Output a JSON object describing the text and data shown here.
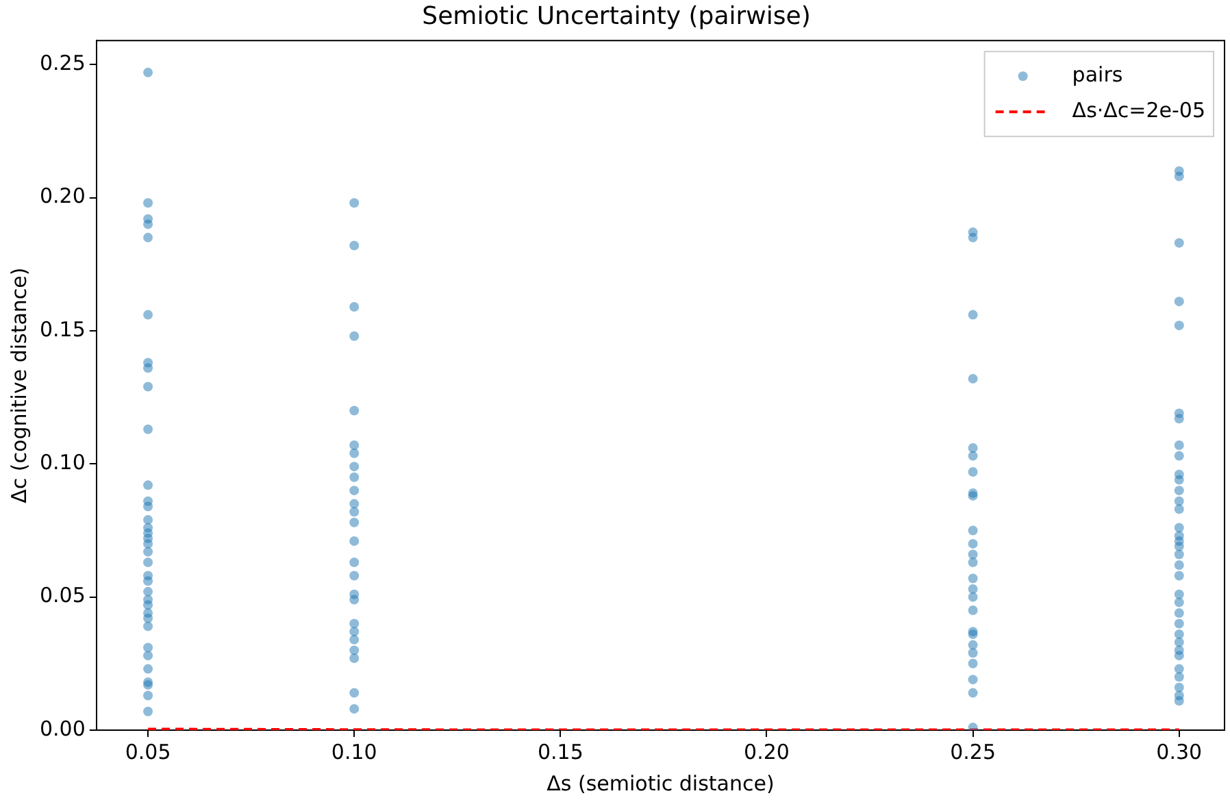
{
  "chart_data": {
    "type": "scatter",
    "title": "Semiotic Uncertainty (pairwise)",
    "xlabel": "Δs (semiotic distance)",
    "ylabel": "Δc (cognitive distance)",
    "xlim": [
      0.0375,
      0.311
    ],
    "xticks": [
      {
        "value": 0.05,
        "label": "0.05"
      },
      {
        "value": 0.1,
        "label": "0.10"
      },
      {
        "value": 0.15,
        "label": "0.15"
      },
      {
        "value": 0.2,
        "label": "0.20"
      },
      {
        "value": 0.25,
        "label": "0.25"
      },
      {
        "value": 0.3,
        "label": "0.30"
      }
    ],
    "ylim": [
      0,
      0.259
    ],
    "yticks": [
      {
        "value": 0,
        "label": "0.00"
      },
      0.05,
      {
        "value": 0.1,
        "label": "0.10"
      },
      0.15,
      {
        "value": 0.2,
        "label": "0.20"
      },
      0.25
    ],
    "grid": false,
    "legend": "top right",
    "marker": "circle",
    "series": [
      {
        "name": "pairs",
        "color": "#1f77b4",
        "x": [
          0.05,
          0.05,
          0.05,
          0.05,
          0.05,
          0.05,
          0.05,
          0.05,
          0.05,
          0.05,
          0.05,
          0.05,
          0.05,
          0.05,
          0.05,
          0.05,
          0.05,
          0.05,
          0.05,
          0.05,
          0.05,
          0.05,
          0.05,
          0.05,
          0.05,
          0.05,
          0.05,
          0.05,
          0.05,
          0.05,
          0.05,
          0.05,
          0.05,
          0.05,
          0.05,
          0.1,
          0.1,
          0.1,
          0.1,
          0.1,
          0.1,
          0.1,
          0.1,
          0.1,
          0.1,
          0.1,
          0.1,
          0.1,
          0.1,
          0.1,
          0.1,
          0.1,
          0.1,
          0.1,
          0.1,
          0.1,
          0.1,
          0.1,
          0.1,
          0.1,
          0.25,
          0.25,
          0.25,
          0.25,
          0.25,
          0.25,
          0.25,
          0.25,
          0.25,
          0.25,
          0.25,
          0.25,
          0.25,
          0.25,
          0.25,
          0.25,
          0.25,
          0.25,
          0.25,
          0.25,
          0.25,
          0.25,
          0.25,
          0.25,
          0.25,
          0.3,
          0.3,
          0.3,
          0.3,
          0.3,
          0.3,
          0.3,
          0.3,
          0.3,
          0.3,
          0.3,
          0.3,
          0.3,
          0.3,
          0.3,
          0.3,
          0.3,
          0.3,
          0.3,
          0.3,
          0.3,
          0.3,
          0.3,
          0.3,
          0.3,
          0.3,
          0.3,
          0.3,
          0.3,
          0.3,
          0.3,
          0.3,
          0.3,
          0.3
        ],
        "values": [
          0.247,
          0.198,
          0.192,
          0.19,
          0.185,
          0.156,
          0.138,
          0.136,
          0.129,
          0.113,
          0.092,
          0.086,
          0.084,
          0.079,
          0.076,
          0.074,
          0.072,
          0.07,
          0.067,
          0.063,
          0.058,
          0.056,
          0.052,
          0.049,
          0.047,
          0.044,
          0.042,
          0.039,
          0.031,
          0.028,
          0.023,
          0.018,
          0.017,
          0.013,
          0.007,
          0.198,
          0.182,
          0.159,
          0.148,
          0.12,
          0.107,
          0.104,
          0.099,
          0.095,
          0.09,
          0.085,
          0.082,
          0.078,
          0.071,
          0.063,
          0.058,
          0.051,
          0.049,
          0.04,
          0.037,
          0.034,
          0.03,
          0.027,
          0.014,
          0.008,
          0.187,
          0.185,
          0.156,
          0.132,
          0.106,
          0.103,
          0.097,
          0.089,
          0.088,
          0.075,
          0.07,
          0.066,
          0.063,
          0.057,
          0.053,
          0.05,
          0.045,
          0.037,
          0.036,
          0.032,
          0.029,
          0.025,
          0.019,
          0.014,
          0.001,
          0.21,
          0.208,
          0.183,
          0.161,
          0.152,
          0.119,
          0.117,
          0.107,
          0.103,
          0.096,
          0.094,
          0.09,
          0.086,
          0.083,
          0.076,
          0.073,
          0.071,
          0.069,
          0.066,
          0.062,
          0.058,
          0.051,
          0.048,
          0.044,
          0.04,
          0.036,
          0.033,
          0.03,
          0.028,
          0.023,
          0.02,
          0.016,
          0.013,
          0.011
        ]
      },
      {
        "name": "Δs·Δc=2e-05",
        "type": "line",
        "color": "#ff0000",
        "line_style": "dashed",
        "marker": "none",
        "x": [
          0.05,
          0.1,
          0.15,
          0.2,
          0.25,
          0.3
        ],
        "values": [
          0.0004,
          0.0002,
          0.0001,
          0.0001,
          0.0001,
          0.0001
        ]
      }
    ]
  }
}
